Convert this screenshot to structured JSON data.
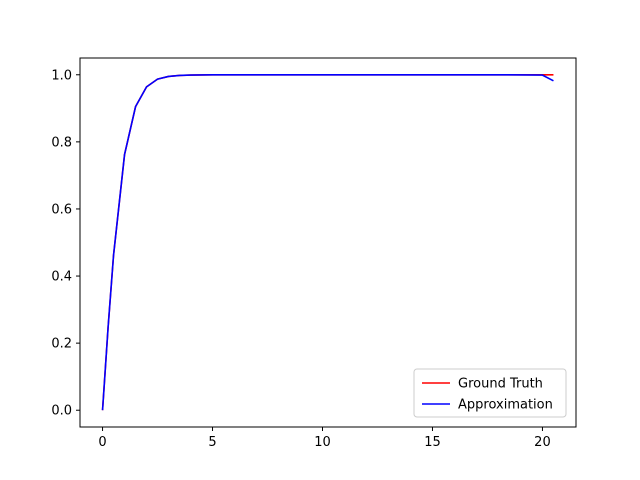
{
  "chart_data": {
    "type": "line",
    "title": "",
    "xlabel": "",
    "ylabel": "",
    "xlim": [
      -1.025,
      21.525
    ],
    "ylim": [
      -0.05,
      1.05
    ],
    "x_ticks": [
      0,
      5,
      10,
      15,
      20
    ],
    "x_tick_labels": [
      "0",
      "5",
      "10",
      "15",
      "20"
    ],
    "y_ticks": [
      0.0,
      0.2,
      0.4,
      0.6,
      0.8,
      1.0
    ],
    "y_tick_labels": [
      "0.0",
      "0.2",
      "0.4",
      "0.6",
      "0.8",
      "1.0"
    ],
    "grid": false,
    "legend_position": "lower-right",
    "x": [
      0,
      0.25,
      0.5,
      1,
      1.5,
      2,
      2.5,
      3,
      3.5,
      4,
      5,
      6,
      8,
      10,
      12,
      14,
      16,
      18,
      20,
      20.5
    ],
    "series": [
      {
        "name": "Ground Truth",
        "color": "#ff0000",
        "values": [
          0.0,
          0.245,
          0.462,
          0.762,
          0.905,
          0.964,
          0.987,
          0.995,
          0.998,
          0.999,
          1.0,
          1.0,
          1.0,
          1.0,
          1.0,
          1.0,
          1.0,
          1.0,
          1.0,
          1.0
        ]
      },
      {
        "name": "Approximation",
        "color": "#0000ff",
        "values": [
          0.0,
          0.245,
          0.462,
          0.762,
          0.905,
          0.964,
          0.987,
          0.995,
          0.998,
          0.999,
          1.0,
          1.0,
          1.0,
          1.0,
          1.0,
          1.0,
          1.0,
          1.0,
          0.999,
          0.982
        ]
      }
    ]
  }
}
